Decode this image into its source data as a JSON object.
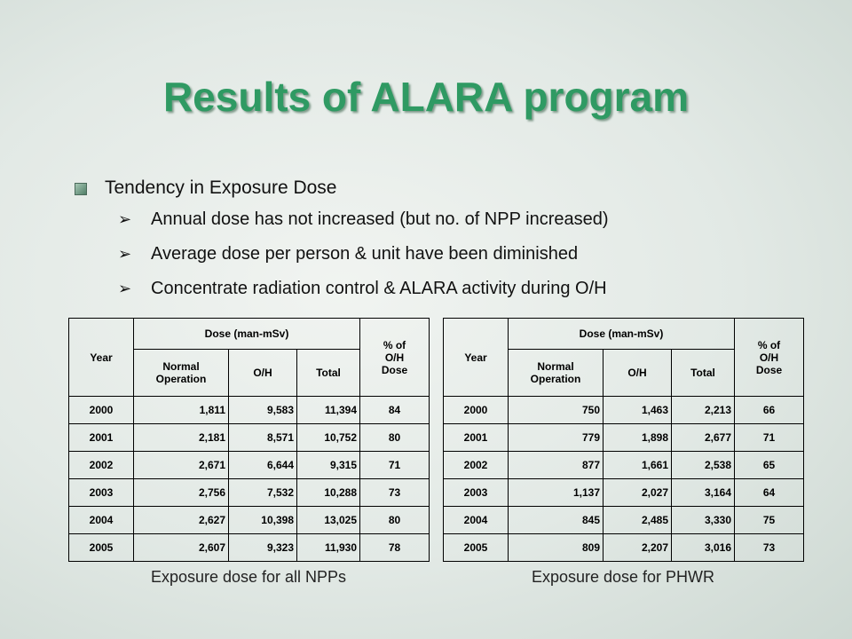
{
  "title": "Results of ALARA program",
  "bullets": {
    "heading": "Tendency in Exposure Dose",
    "items": [
      "Annual dose has not increased (but no. of NPP increased)",
      "Average dose per person & unit have been diminished",
      "Concentrate radiation control & ALARA activity during O/H"
    ]
  },
  "tables": [
    {
      "headers": {
        "year": "Year",
        "dose": "Dose (man-mSv)",
        "normal": "Normal Operation",
        "oh": "O/H",
        "total": "Total",
        "pct": "% of O/H Dose"
      },
      "rows": [
        [
          "2000",
          "1,811",
          "9,583",
          "11,394",
          "84"
        ],
        [
          "2001",
          "2,181",
          "8,571",
          "10,752",
          "80"
        ],
        [
          "2002",
          "2,671",
          "6,644",
          "9,315",
          "71"
        ],
        [
          "2003",
          "2,756",
          "7,532",
          "10,288",
          "73"
        ],
        [
          "2004",
          "2,627",
          "10,398",
          "13,025",
          "80"
        ],
        [
          "2005",
          "2,607",
          "9,323",
          "11,930",
          "78"
        ]
      ],
      "caption": "Exposure dose for all NPPs"
    },
    {
      "headers": {
        "year": "Year",
        "dose": "Dose (man-mSv)",
        "normal": "Normal Operation",
        "oh": "O/H",
        "total": "Total",
        "pct": "% of O/H Dose"
      },
      "rows": [
        [
          "2000",
          "750",
          "1,463",
          "2,213",
          "66"
        ],
        [
          "2001",
          "779",
          "1,898",
          "2,677",
          "71"
        ],
        [
          "2002",
          "877",
          "1,661",
          "2,538",
          "65"
        ],
        [
          "2003",
          "1,137",
          "2,027",
          "3,164",
          "64"
        ],
        [
          "2004",
          "845",
          "2,485",
          "3,330",
          "75"
        ],
        [
          "2005",
          "809",
          "2,207",
          "3,016",
          "73"
        ]
      ],
      "caption": "Exposure dose for PHWR"
    }
  ]
}
